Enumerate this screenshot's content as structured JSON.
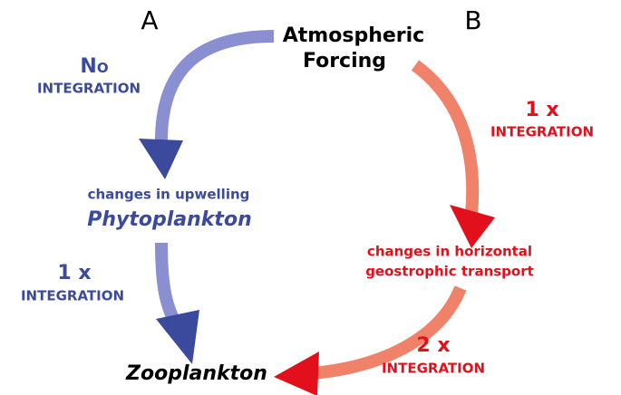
{
  "panels": [
    "A",
    "B"
  ],
  "nodes": {
    "forcing": [
      "Atmospheric",
      "Forcing"
    ],
    "upwelling": "changes in upwelling",
    "phytoplankton": "Phytoplankton",
    "horizontal": [
      "changes in horizontal",
      "geostrophic transport"
    ],
    "zooplankton": "Zooplankton"
  },
  "integrations": [
    {
      "count": "No",
      "label": "INTEGRATION"
    },
    {
      "count": "1 x",
      "label": "INTEGRATION"
    },
    {
      "count": "1 x",
      "label": "INTEGRATION"
    },
    {
      "count": "2 x",
      "label": "INTEGRATION"
    }
  ]
}
